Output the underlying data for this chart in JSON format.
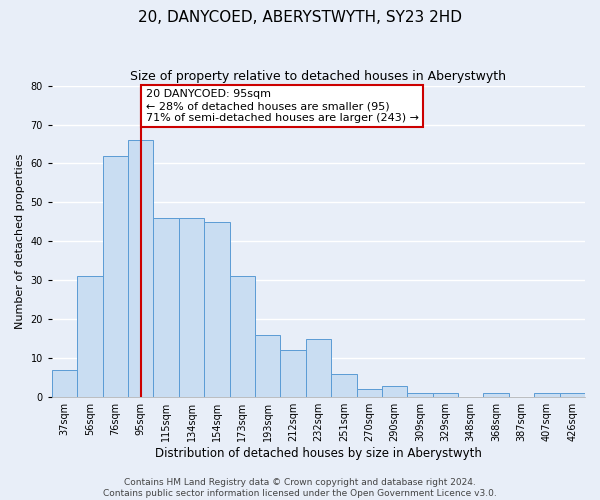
{
  "title": "20, DANYCOED, ABERYSTWYTH, SY23 2HD",
  "subtitle": "Size of property relative to detached houses in Aberystwyth",
  "xlabel": "Distribution of detached houses by size in Aberystwyth",
  "ylabel": "Number of detached properties",
  "bin_labels": [
    "37sqm",
    "56sqm",
    "76sqm",
    "95sqm",
    "115sqm",
    "134sqm",
    "154sqm",
    "173sqm",
    "193sqm",
    "212sqm",
    "232sqm",
    "251sqm",
    "270sqm",
    "290sqm",
    "309sqm",
    "329sqm",
    "348sqm",
    "368sqm",
    "387sqm",
    "407sqm",
    "426sqm"
  ],
  "bar_heights": [
    7,
    31,
    62,
    66,
    46,
    46,
    45,
    31,
    16,
    12,
    15,
    6,
    2,
    3,
    1,
    1,
    0,
    1,
    0,
    1,
    1
  ],
  "bar_color": "#c9ddf2",
  "bar_edge_color": "#5b9bd5",
  "vline_x": 3.5,
  "vline_color": "#cc0000",
  "annotation_text": "20 DANYCOED: 95sqm\n← 28% of detached houses are smaller (95)\n71% of semi-detached houses are larger (243) →",
  "annotation_box_color": "#ffffff",
  "annotation_box_edge_color": "#cc0000",
  "ylim": [
    0,
    80
  ],
  "yticks": [
    0,
    10,
    20,
    30,
    40,
    50,
    60,
    70,
    80
  ],
  "background_color": "#e8eef8",
  "plot_bg_color": "#e8eef8",
  "footer_text": "Contains HM Land Registry data © Crown copyright and database right 2024.\nContains public sector information licensed under the Open Government Licence v3.0.",
  "title_fontsize": 11,
  "subtitle_fontsize": 9,
  "xlabel_fontsize": 8.5,
  "ylabel_fontsize": 8,
  "tick_fontsize": 7,
  "annotation_fontsize": 8,
  "footer_fontsize": 6.5
}
